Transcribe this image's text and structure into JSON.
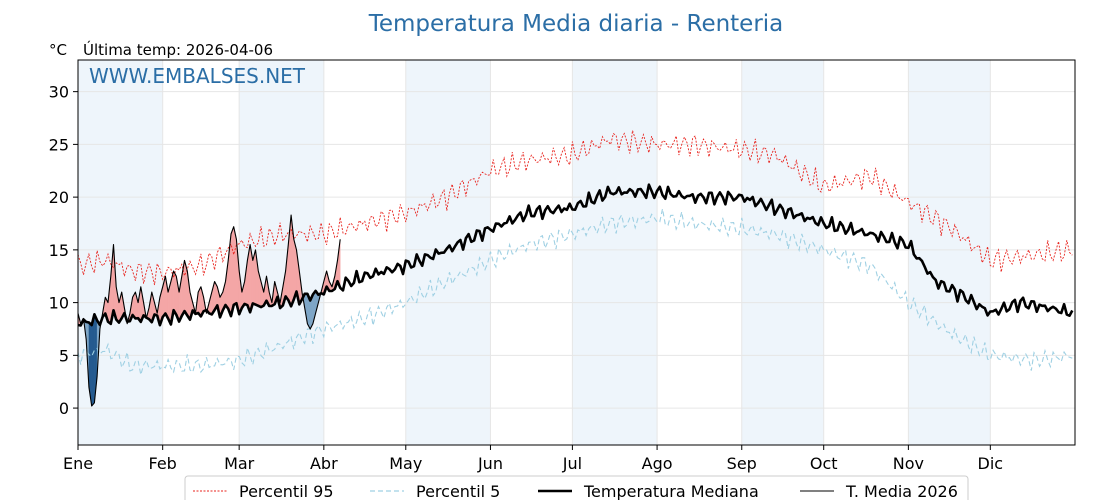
{
  "chart_data": {
    "type": "line",
    "title": "Temperatura Media diaria - Renteria",
    "unit_label": "°C",
    "subtitle": "Última temp: 2026-04-06",
    "watermark": "WWW.EMBALSES.NET",
    "ylim": [
      -3.5,
      33
    ],
    "yticks": [
      "0",
      "5",
      "10",
      "15",
      "20",
      "25",
      "30"
    ],
    "xlim": [
      0,
      365
    ],
    "months": [
      {
        "label": "Ene",
        "start": 0
      },
      {
        "label": "Feb",
        "start": 31
      },
      {
        "label": "Mar",
        "start": 59
      },
      {
        "label": "Abr",
        "start": 90
      },
      {
        "label": "May",
        "start": 120
      },
      {
        "label": "Jun",
        "start": 151
      },
      {
        "label": "Jul",
        "start": 181
      },
      {
        "label": "Ago",
        "start": 212
      },
      {
        "label": "Sep",
        "start": 243
      },
      {
        "label": "Oct",
        "start": 273
      },
      {
        "label": "Nov",
        "start": 304
      },
      {
        "label": "Dic",
        "start": 334
      }
    ],
    "legend": [
      "Percentil 95",
      "Percentil 5",
      "Temperatura Mediana",
      "T. Media 2026"
    ],
    "colors": {
      "p95": "#e8231d",
      "p5": "#9fd0e3",
      "median": "#000000",
      "current": "#000000",
      "above_fill": "#f4a6a6",
      "below_fill": "#7ea6c7",
      "deep_below_fill": "#245a8f",
      "band": "#eef5fb"
    },
    "series": {
      "p95_keypoints": [
        [
          0,
          13.5
        ],
        [
          10,
          14
        ],
        [
          20,
          13
        ],
        [
          31,
          12.8
        ],
        [
          45,
          13.5
        ],
        [
          59,
          15.5
        ],
        [
          75,
          16.5
        ],
        [
          90,
          16.5
        ],
        [
          105,
          17.5
        ],
        [
          120,
          18.5
        ],
        [
          135,
          20
        ],
        [
          151,
          22.5
        ],
        [
          165,
          23.5
        ],
        [
          181,
          24
        ],
        [
          195,
          25.5
        ],
        [
          212,
          25
        ],
        [
          225,
          25
        ],
        [
          243,
          24.5
        ],
        [
          255,
          24
        ],
        [
          273,
          21
        ],
        [
          290,
          22
        ],
        [
          304,
          19.5
        ],
        [
          320,
          17
        ],
        [
          334,
          14
        ],
        [
          350,
          14.5
        ],
        [
          365,
          15
        ]
      ],
      "p5_keypoints": [
        [
          0,
          5
        ],
        [
          10,
          5.5
        ],
        [
          20,
          4
        ],
        [
          31,
          4
        ],
        [
          45,
          4
        ],
        [
          59,
          4.5
        ],
        [
          75,
          6
        ],
        [
          90,
          7.5
        ],
        [
          105,
          8.5
        ],
        [
          120,
          10
        ],
        [
          135,
          12
        ],
        [
          151,
          14
        ],
        [
          165,
          15.5
        ],
        [
          181,
          16.5
        ],
        [
          195,
          17.5
        ],
        [
          212,
          18
        ],
        [
          225,
          17.5
        ],
        [
          243,
          17
        ],
        [
          255,
          16.5
        ],
        [
          273,
          15
        ],
        [
          290,
          13.5
        ],
        [
          304,
          10
        ],
        [
          320,
          7
        ],
        [
          334,
          5
        ],
        [
          350,
          4.5
        ],
        [
          365,
          5
        ]
      ],
      "median_keypoints": [
        [
          0,
          8
        ],
        [
          10,
          8.5
        ],
        [
          20,
          8.5
        ],
        [
          31,
          8.5
        ],
        [
          45,
          9
        ],
        [
          59,
          9.5
        ],
        [
          75,
          10
        ],
        [
          90,
          11
        ],
        [
          105,
          12.5
        ],
        [
          120,
          13.5
        ],
        [
          135,
          15
        ],
        [
          151,
          17
        ],
        [
          165,
          18.5
        ],
        [
          181,
          19
        ],
        [
          195,
          20.5
        ],
        [
          212,
          20.5
        ],
        [
          225,
          20
        ],
        [
          243,
          20
        ],
        [
          255,
          19
        ],
        [
          273,
          17.5
        ],
        [
          290,
          16.5
        ],
        [
          304,
          15.5
        ],
        [
          314,
          12
        ],
        [
          325,
          10.5
        ],
        [
          334,
          9
        ],
        [
          345,
          10
        ],
        [
          365,
          9
        ]
      ],
      "current_2026": [
        [
          0,
          9
        ],
        [
          1,
          8
        ],
        [
          2,
          8.5
        ],
        [
          3,
          6.5
        ],
        [
          4,
          2
        ],
        [
          5,
          0.2
        ],
        [
          6,
          0.5
        ],
        [
          7,
          3
        ],
        [
          8,
          7.5
        ],
        [
          9,
          9
        ],
        [
          10,
          10.5
        ],
        [
          11,
          10
        ],
        [
          12,
          12.5
        ],
        [
          13,
          15.5
        ],
        [
          14,
          11.5
        ],
        [
          15,
          10
        ],
        [
          16,
          11
        ],
        [
          17,
          9.5
        ],
        [
          18,
          8
        ],
        [
          19,
          9
        ],
        [
          20,
          10.5
        ],
        [
          21,
          11
        ],
        [
          22,
          10
        ],
        [
          23,
          11.5
        ],
        [
          24,
          10
        ],
        [
          25,
          8.5
        ],
        [
          26,
          9.5
        ],
        [
          27,
          11
        ],
        [
          28,
          10
        ],
        [
          29,
          9
        ],
        [
          30,
          10.5
        ],
        [
          31,
          11.5
        ],
        [
          32,
          12.5
        ],
        [
          33,
          11
        ],
        [
          34,
          12
        ],
        [
          35,
          13
        ],
        [
          36,
          12.5
        ],
        [
          37,
          11
        ],
        [
          38,
          12.5
        ],
        [
          39,
          14
        ],
        [
          40,
          13
        ],
        [
          41,
          11
        ],
        [
          42,
          10
        ],
        [
          43,
          9
        ],
        [
          44,
          11
        ],
        [
          45,
          11.5
        ],
        [
          46,
          10.5
        ],
        [
          47,
          9
        ],
        [
          48,
          10
        ],
        [
          49,
          11
        ],
        [
          50,
          12
        ],
        [
          51,
          11.5
        ],
        [
          52,
          10.5
        ],
        [
          53,
          11
        ],
        [
          54,
          12
        ],
        [
          55,
          14
        ],
        [
          56,
          16.5
        ],
        [
          57,
          17.2
        ],
        [
          58,
          16
        ],
        [
          59,
          13
        ],
        [
          60,
          11
        ],
        [
          61,
          12
        ],
        [
          62,
          14
        ],
        [
          63,
          15.5
        ],
        [
          64,
          14
        ],
        [
          65,
          15
        ],
        [
          66,
          13
        ],
        [
          67,
          12
        ],
        [
          68,
          11
        ],
        [
          69,
          12.5
        ],
        [
          70,
          11
        ],
        [
          71,
          10
        ],
        [
          72,
          12
        ],
        [
          73,
          11
        ],
        [
          74,
          10
        ],
        [
          75,
          11.5
        ],
        [
          76,
          13
        ],
        [
          77,
          15.5
        ],
        [
          78,
          18.3
        ],
        [
          79,
          16
        ],
        [
          80,
          15
        ],
        [
          81,
          13
        ],
        [
          82,
          11
        ],
        [
          83,
          9.5
        ],
        [
          84,
          8
        ],
        [
          85,
          7.5
        ],
        [
          86,
          8
        ],
        [
          87,
          9
        ],
        [
          88,
          10
        ],
        [
          89,
          11
        ],
        [
          90,
          12
        ],
        [
          91,
          13
        ],
        [
          92,
          12
        ],
        [
          93,
          11.5
        ],
        [
          94,
          12.5
        ],
        [
          95,
          14
        ],
        [
          96,
          16
        ]
      ]
    }
  }
}
